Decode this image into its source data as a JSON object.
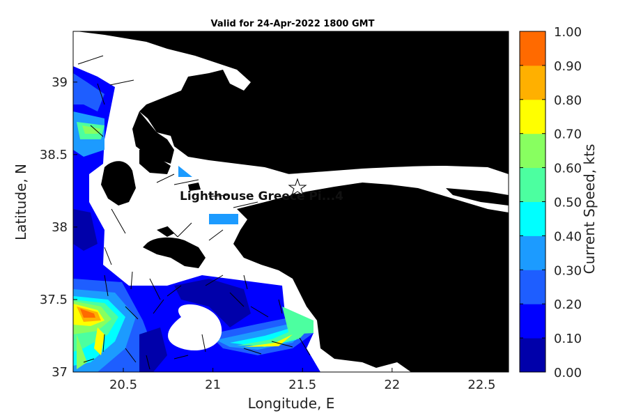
{
  "chart_data": {
    "type": "heatmap",
    "title": "Valid for 24-Apr-2022 1800 GMT",
    "xlabel": "Longitude, E",
    "ylabel": "Latitude, N",
    "xlim": [
      20.22,
      22.65
    ],
    "ylim": [
      37.0,
      39.35
    ],
    "x_ticks": [
      "20.5",
      "21",
      "21.5",
      "22",
      "22.5"
    ],
    "y_ticks": [
      "37",
      "37.5",
      "38",
      "38.5",
      "39"
    ],
    "x_tick_values": [
      20.5,
      21.0,
      21.5,
      22.0,
      22.5
    ],
    "y_tick_values": [
      37.0,
      37.5,
      38.0,
      38.5,
      39.0
    ],
    "colorbar": {
      "label": "Current Speed, kts",
      "ticks": [
        "0.00",
        "0.10",
        "0.20",
        "0.30",
        "0.40",
        "0.50",
        "0.60",
        "0.70",
        "0.80",
        "0.90",
        "1.00"
      ],
      "colors": [
        "#0000aa",
        "#0000ff",
        "#1e5eff",
        "#1c9bff",
        "#00ffff",
        "#4cffa0",
        "#88ff60",
        "#ffff00",
        "#ffb000",
        "#ff6a00"
      ]
    },
    "marker": {
      "name": "Lighthouse Greece Pier...4",
      "label": "Lighthouse Greece Pi...4",
      "lon": 21.56,
      "lat": 38.27
    },
    "sample_speeds_kts": [
      {
        "lon": 20.3,
        "lat": 37.38,
        "speed": 0.9
      },
      {
        "lon": 20.35,
        "lat": 38.65,
        "speed": 0.6
      },
      {
        "lon": 20.42,
        "lat": 37.2,
        "speed": 0.55
      },
      {
        "lon": 21.3,
        "lat": 37.15,
        "speed": 0.55
      },
      {
        "lon": 21.55,
        "lat": 37.3,
        "speed": 0.55
      },
      {
        "lon": 20.3,
        "lat": 38.95,
        "speed": 0.4
      },
      {
        "lon": 20.3,
        "lat": 37.9,
        "speed": 0.15
      },
      {
        "lon": 21.1,
        "lat": 37.45,
        "speed": 0.1
      },
      {
        "lon": 21.08,
        "lat": 38.04,
        "speed": 0.35
      },
      {
        "lon": 20.84,
        "lat": 38.37,
        "speed": 0.35
      }
    ]
  }
}
